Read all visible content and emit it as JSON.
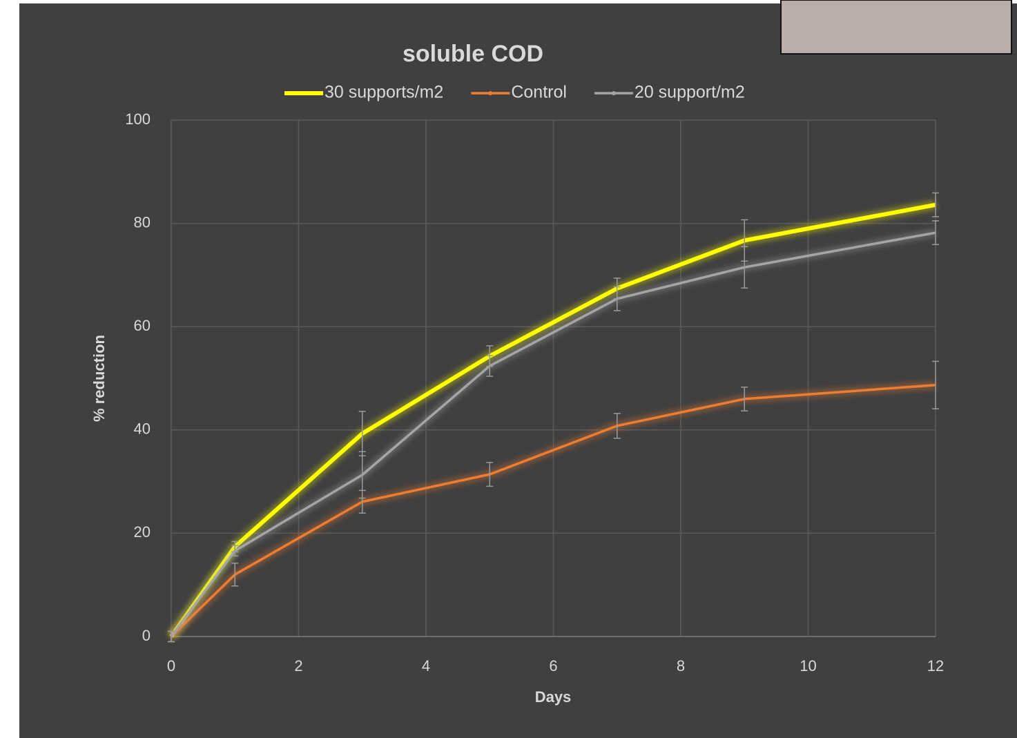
{
  "chart_data": {
    "type": "line",
    "title": "soluble COD",
    "x_label": "Days",
    "y_label": "% reduction",
    "x": [
      0,
      1,
      3,
      5,
      7,
      9,
      12
    ],
    "series": [
      {
        "name": "30 supports/m2",
        "color": "#ffff00",
        "width": 6,
        "values": [
          0,
          17.4,
          39.3,
          54.3,
          67.4,
          76.7,
          83.6
        ],
        "errors": [
          1,
          1,
          4.3,
          2,
          2,
          4,
          2.3
        ]
      },
      {
        "name": "Control",
        "color": "#ed7d31",
        "width": 3.5,
        "values": [
          0,
          12.0,
          26.1,
          31.4,
          40.8,
          46.0,
          48.7
        ],
        "errors": [
          1,
          2.2,
          2.2,
          2.3,
          2.4,
          2.3,
          4.6
        ]
      },
      {
        "name": "20 support/m2",
        "color": "#a5a5a5",
        "width": 3.5,
        "values": [
          0,
          16.6,
          31.3,
          52.4,
          65.4,
          71.5,
          78.2
        ],
        "errors": [
          1,
          1,
          4.5,
          2,
          2.3,
          4,
          2.3
        ]
      }
    ],
    "xlim": [
      0,
      12
    ],
    "xticks": [
      0,
      2,
      4,
      6,
      8,
      10,
      12
    ],
    "ylim": [
      0,
      100
    ],
    "yticks": [
      0,
      20,
      40,
      60,
      80,
      100
    ],
    "grid": true,
    "legend": "top",
    "error_bar_color": "#9a9a9a"
  }
}
